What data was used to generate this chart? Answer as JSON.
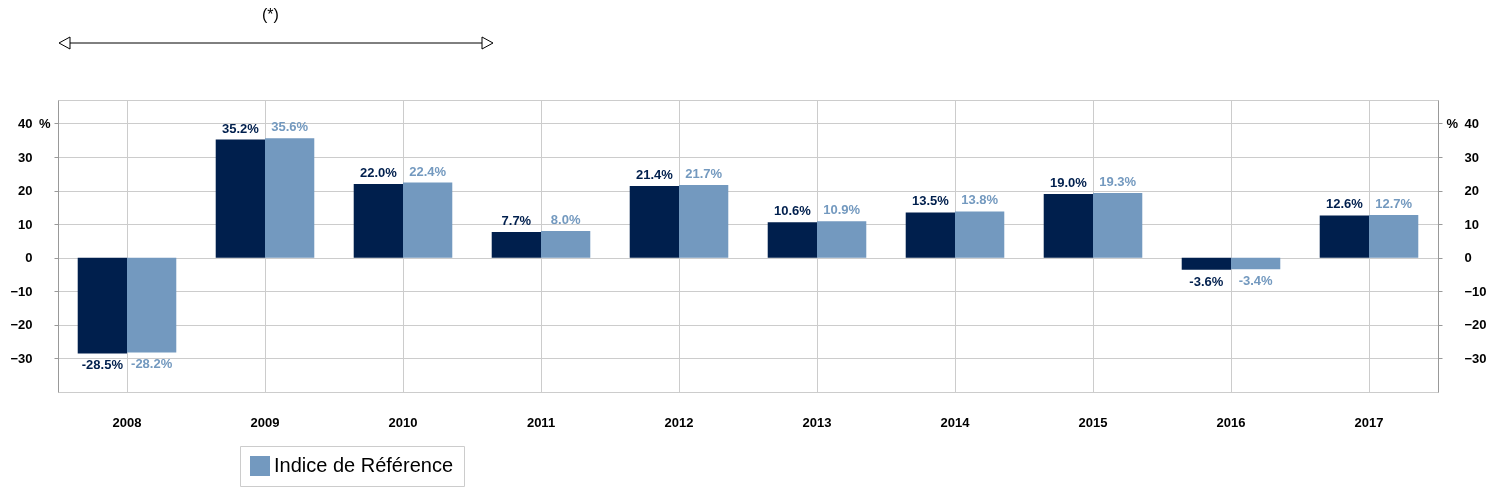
{
  "chart_data": {
    "type": "bar",
    "categories": [
      "2008",
      "2009",
      "2010",
      "2011",
      "2012",
      "2013",
      "2014",
      "2015",
      "2016",
      "2017"
    ],
    "series": [
      {
        "color": "#001f4d",
        "values": [
          -28.5,
          35.2,
          22.0,
          7.7,
          21.4,
          10.6,
          13.5,
          19.0,
          -3.6,
          12.6
        ],
        "value_labels": [
          "-28.5%",
          "35.2%",
          "22.0%",
          "7.7%",
          "21.4%",
          "10.6%",
          "13.5%",
          "19.0%",
          "-3.6%",
          "12.6%"
        ]
      },
      {
        "name": "Indice de Référence",
        "color": "#7399bf",
        "values": [
          -28.2,
          35.6,
          22.4,
          8.0,
          21.7,
          10.9,
          13.8,
          19.3,
          -3.4,
          12.7
        ],
        "value_labels": [
          "-28.2%",
          "35.6%",
          "22.4%",
          "8.0%",
          "21.7%",
          "10.9%",
          "13.8%",
          "19.3%",
          "-3.4%",
          "12.7%"
        ]
      }
    ],
    "ylabel": "%",
    "y2label": "%",
    "ylim": [
      -40,
      47
    ],
    "yticks": [
      -30,
      -20,
      -10,
      0,
      10,
      20,
      30,
      40
    ],
    "y2lim": [
      -40,
      47
    ],
    "y2ticks": [
      -30,
      -20,
      -10,
      0,
      10,
      20,
      30,
      40
    ],
    "grid": true,
    "legend": "bottom",
    "annotations": [
      "(*)"
    ]
  }
}
